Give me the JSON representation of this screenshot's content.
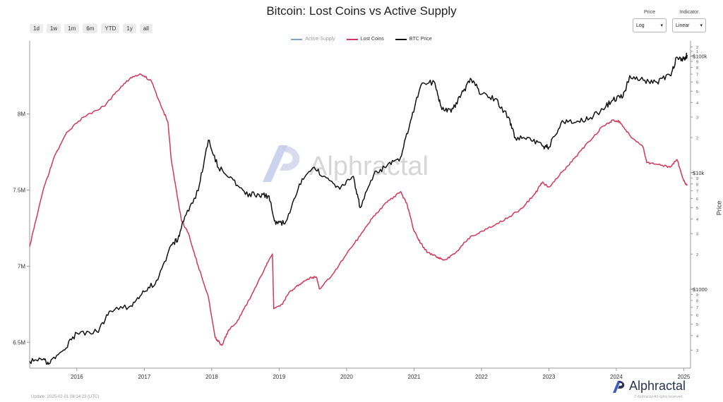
{
  "controls": {
    "ranges": [
      "1d",
      "1w",
      "1m",
      "6m",
      "YTD",
      "1y",
      "all"
    ],
    "price_label": "Price",
    "price_value": "Log",
    "indicator_label": "Indicator",
    "indicator_value": "Linear"
  },
  "watermark": "Alphractal",
  "brand": "Alphractal",
  "footer": {
    "left": "Update: 2025-02-01 08:14:23 (UTC)",
    "right": "© Alphractal All rights reserved"
  },
  "colors": {
    "active_supply": "#7f9fd0",
    "lost_coins": "#d3375a",
    "btc_price": "#111111",
    "brand": "#2a3352"
  },
  "chart_data": {
    "type": "line",
    "title": "Bitcoin: Lost Coins vs Active Supply",
    "ylabel_right": "Price",
    "grid": false,
    "legend_position": "top-center",
    "x_ticks": [
      "2016",
      "2017",
      "2018",
      "2019",
      "2020",
      "2021",
      "2022",
      "2023",
      "2024",
      "2025"
    ],
    "x_range": [
      2015.3,
      2025.1
    ],
    "y_left": {
      "range": [
        6330000,
        8480000
      ],
      "ticks": [
        6500000,
        7000000,
        7500000,
        8000000
      ],
      "tick_labels": [
        "6.5M",
        "7M",
        "7.5M",
        "8M"
      ]
    },
    "y_right": {
      "scale": "log",
      "range": [
        210,
        135000
      ],
      "major_ticks": [
        1000,
        10000,
        100000
      ],
      "major_labels": [
        "$1000",
        "$10k",
        "$100k"
      ],
      "minor_ticks": [
        300,
        400,
        500,
        600,
        700,
        800,
        900,
        2000,
        3000,
        4000,
        5000,
        6000,
        7000,
        8000,
        9000,
        20000,
        30000,
        40000,
        50000,
        60000,
        70000,
        80000,
        90000,
        110000,
        120000
      ],
      "minor_labels": [
        "3",
        "4",
        "5",
        "6",
        "7",
        "8",
        "9",
        "2",
        "3",
        "4",
        "5",
        "6",
        "7",
        "8",
        "9",
        "2",
        "3",
        "4",
        "5",
        "6",
        "7",
        "8",
        "9",
        "1",
        "2"
      ]
    },
    "series": [
      {
        "name": "Active Supply",
        "axis": "left",
        "hidden": true,
        "x": [],
        "y": []
      },
      {
        "name": "Lost Coins",
        "axis": "left",
        "x": [
          2015.3,
          2015.5,
          2015.65,
          2015.85,
          2016.1,
          2016.4,
          2016.6,
          2016.8,
          2016.95,
          2017.1,
          2017.25,
          2017.35,
          2017.4,
          2017.55,
          2017.65,
          2017.8,
          2017.95,
          2018.05,
          2018.15,
          2018.25,
          2018.4,
          2018.6,
          2018.8,
          2018.9,
          2018.92,
          2019.05,
          2019.15,
          2019.3,
          2019.45,
          2019.55,
          2019.6,
          2019.8,
          2020.0,
          2020.2,
          2020.4,
          2020.6,
          2020.8,
          2020.9,
          2021.0,
          2021.1,
          2021.2,
          2021.35,
          2021.45,
          2021.6,
          2021.8,
          2022.0,
          2022.2,
          2022.4,
          2022.6,
          2022.8,
          2022.9,
          2023.0,
          2023.2,
          2023.4,
          2023.6,
          2023.8,
          2023.95,
          2024.05,
          2024.2,
          2024.4,
          2024.45,
          2024.6,
          2024.8,
          2024.9,
          2025.0,
          2025.05
        ],
        "y": [
          7130000,
          7500000,
          7700000,
          7880000,
          7980000,
          8050000,
          8150000,
          8240000,
          8260000,
          8220000,
          8050000,
          7950000,
          7700000,
          7300000,
          7220000,
          7000000,
          6800000,
          6530000,
          6480000,
          6580000,
          6650000,
          6820000,
          7000000,
          7080000,
          6720000,
          6750000,
          6830000,
          6880000,
          6920000,
          6930000,
          6850000,
          6950000,
          7080000,
          7200000,
          7330000,
          7420000,
          7490000,
          7400000,
          7230000,
          7150000,
          7090000,
          7060000,
          7040000,
          7080000,
          7180000,
          7230000,
          7270000,
          7320000,
          7380000,
          7480000,
          7550000,
          7520000,
          7620000,
          7720000,
          7820000,
          7920000,
          7960000,
          7950000,
          7860000,
          7780000,
          7680000,
          7670000,
          7650000,
          7700000,
          7560000,
          7530000
        ]
      },
      {
        "name": "BTC Price",
        "axis": "right",
        "x": [
          2015.3,
          2015.5,
          2015.6,
          2015.8,
          2016.0,
          2016.3,
          2016.5,
          2016.8,
          2017.0,
          2017.2,
          2017.4,
          2017.5,
          2017.6,
          2017.8,
          2017.95,
          2018.1,
          2018.3,
          2018.5,
          2018.7,
          2018.85,
          2018.95,
          2019.1,
          2019.3,
          2019.5,
          2019.7,
          2019.9,
          2020.1,
          2020.2,
          2020.4,
          2020.6,
          2020.8,
          2020.95,
          2021.1,
          2021.3,
          2021.4,
          2021.55,
          2021.7,
          2021.85,
          2022.0,
          2022.2,
          2022.4,
          2022.5,
          2022.7,
          2022.9,
          2023.0,
          2023.2,
          2023.4,
          2023.6,
          2023.8,
          2023.95,
          2024.1,
          2024.2,
          2024.4,
          2024.6,
          2024.8,
          2024.9,
          2025.0,
          2025.05
        ],
        "y": [
          240,
          250,
          230,
          300,
          420,
          430,
          650,
          720,
          950,
          1200,
          2400,
          2700,
          4200,
          7000,
          19000,
          11000,
          9000,
          6500,
          6500,
          6300,
          3600,
          3800,
          8000,
          11000,
          9000,
          7200,
          9300,
          5000,
          9500,
          11500,
          13500,
          28000,
          56000,
          60000,
          37000,
          33000,
          47000,
          63000,
          47000,
          43000,
          30000,
          20000,
          20000,
          17000,
          16500,
          28000,
          27000,
          29000,
          35000,
          42000,
          45000,
          68000,
          62000,
          60000,
          68000,
          98000,
          95000,
          102000
        ]
      }
    ]
  }
}
